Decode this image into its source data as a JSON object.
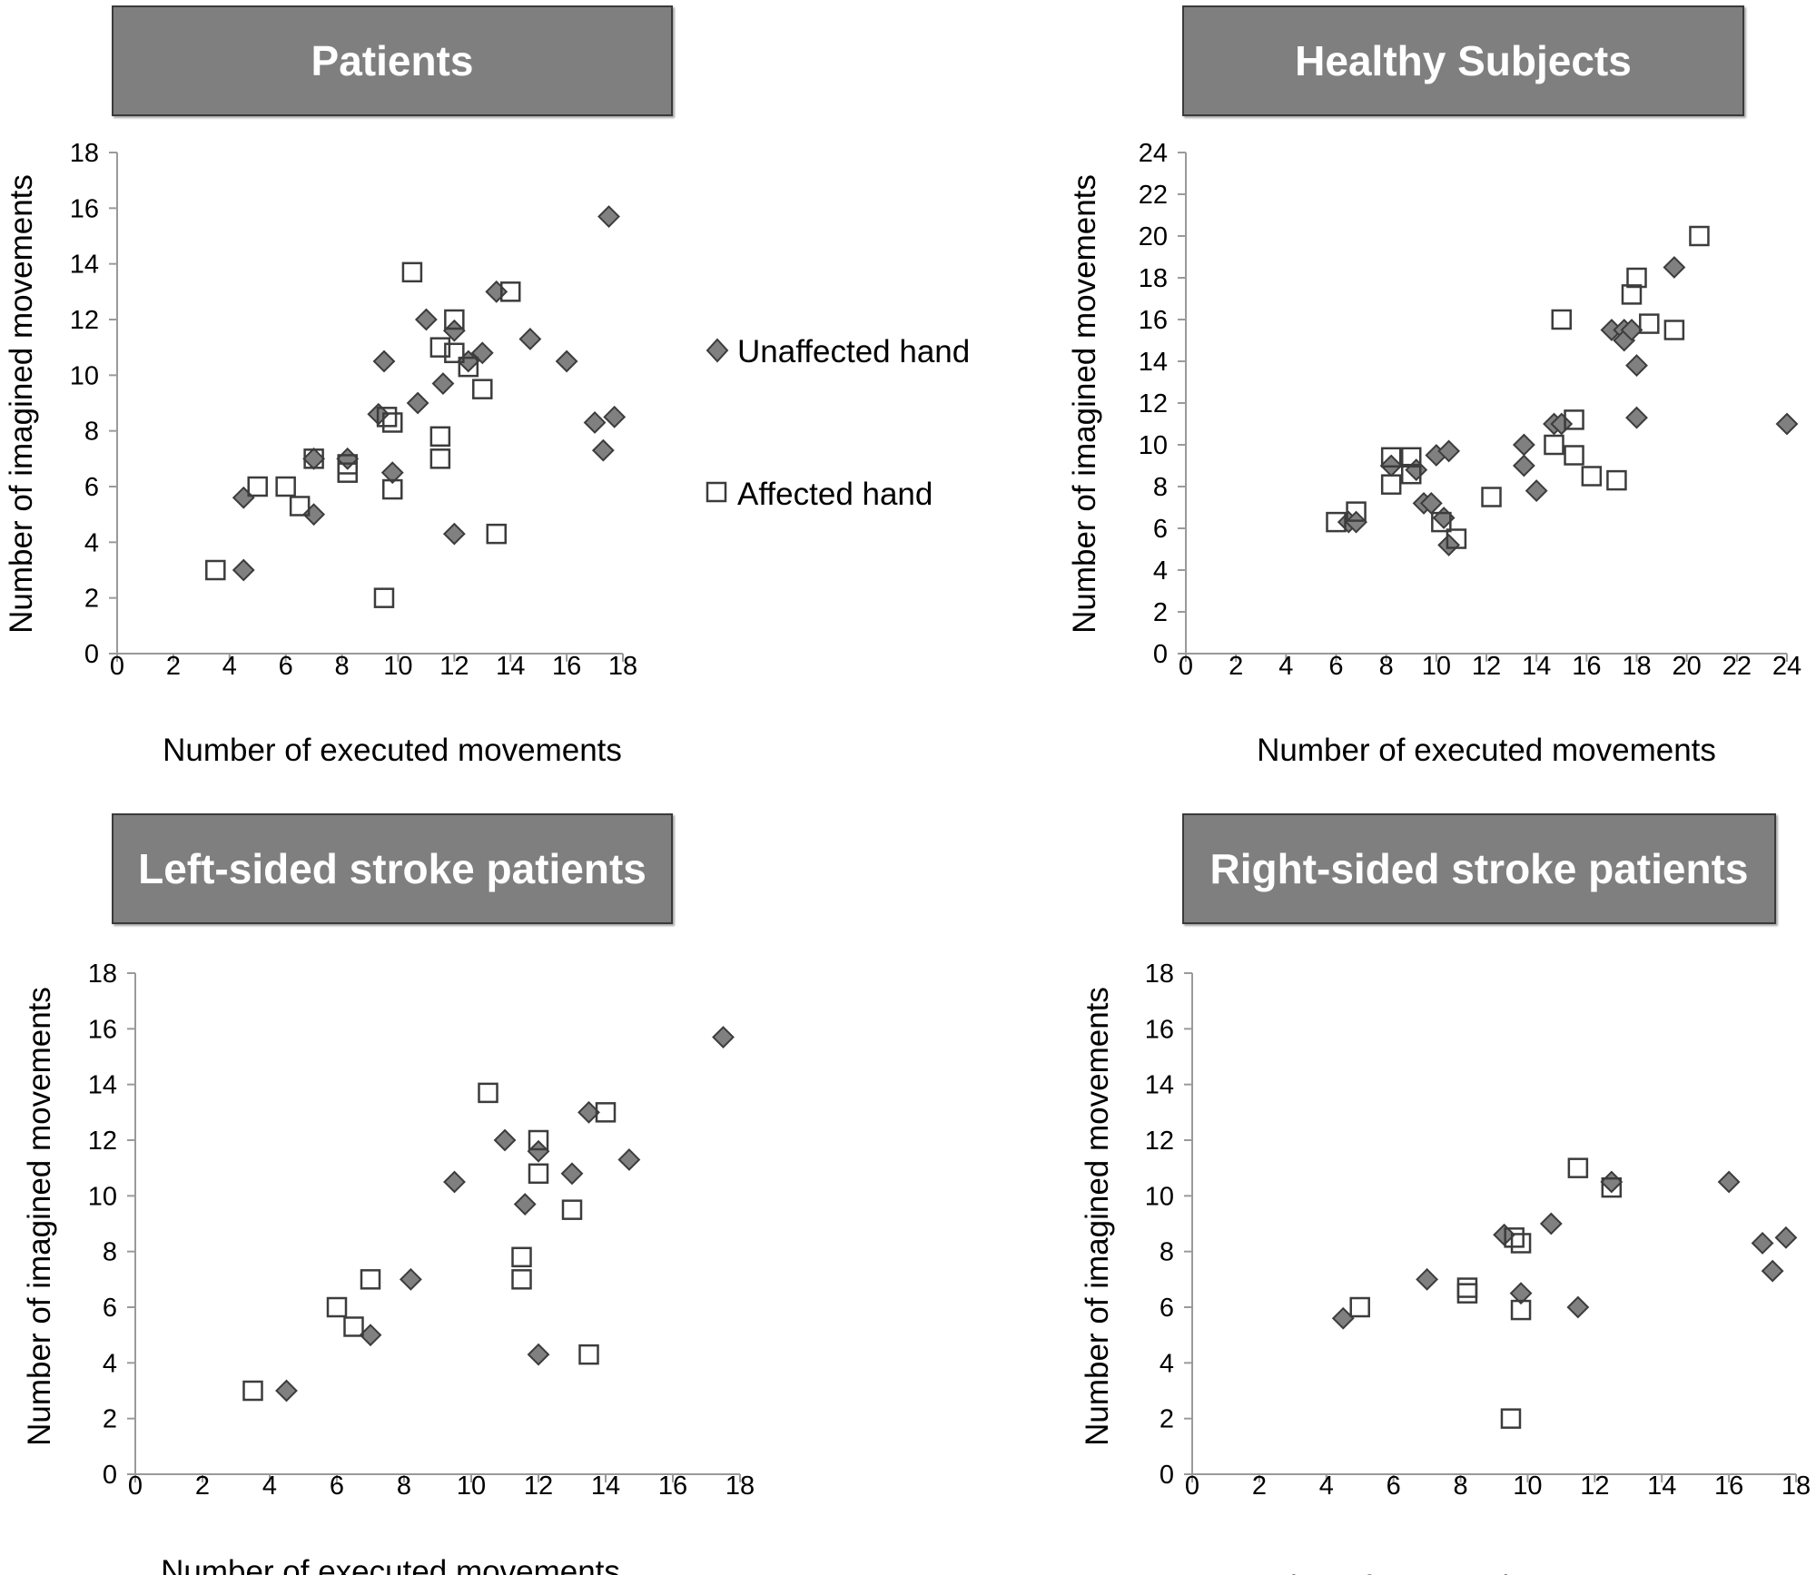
{
  "chart_data": [
    {
      "type": "scatter",
      "title": "Patients",
      "xlabel": "Number of executed movements",
      "ylabel": "Number of imagined movements",
      "xlim": [
        0,
        18
      ],
      "ylim": [
        0,
        18
      ],
      "xticks": [
        "0",
        "2",
        "4",
        "6",
        "8",
        "10",
        "12",
        "14",
        "16",
        "18"
      ],
      "yticks": [
        "0",
        "2",
        "4",
        "6",
        "8",
        "10",
        "12",
        "14",
        "16",
        "18"
      ],
      "legend": {
        "position": "right"
      },
      "series": [
        {
          "name": "Unaffected hand",
          "marker": "diamond",
          "points": [
            [
              4.5,
              5.6
            ],
            [
              4.5,
              3
            ],
            [
              7,
              7
            ],
            [
              7,
              5
            ],
            [
              8.2,
              7
            ],
            [
              9.3,
              8.6
            ],
            [
              9.5,
              10.5
            ],
            [
              9.8,
              6.5
            ],
            [
              10.7,
              9
            ],
            [
              11,
              12
            ],
            [
              11.6,
              9.7
            ],
            [
              12,
              11.6
            ],
            [
              12,
              4.3
            ],
            [
              12.5,
              10.5
            ],
            [
              13,
              10.8
            ],
            [
              13.5,
              13
            ],
            [
              14.7,
              11.3
            ],
            [
              16,
              10.5
            ],
            [
              17,
              8.3
            ],
            [
              17.3,
              7.3
            ],
            [
              17.5,
              15.7
            ],
            [
              17.7,
              8.5
            ]
          ]
        },
        {
          "name": "Affected hand",
          "marker": "square",
          "points": [
            [
              3.5,
              3
            ],
            [
              5,
              6
            ],
            [
              6,
              6
            ],
            [
              6.5,
              5.3
            ],
            [
              7,
              7
            ],
            [
              8.2,
              6.5
            ],
            [
              8.2,
              6.8
            ],
            [
              9.5,
              2
            ],
            [
              9.6,
              8.5
            ],
            [
              9.8,
              8.3
            ],
            [
              9.8,
              5.9
            ],
            [
              10.5,
              13.7
            ],
            [
              11.5,
              11
            ],
            [
              11.5,
              7.8
            ],
            [
              11.5,
              7
            ],
            [
              12,
              12
            ],
            [
              12,
              10.8
            ],
            [
              12.5,
              10.3
            ],
            [
              13,
              9.5
            ],
            [
              13.5,
              4.3
            ],
            [
              14,
              13
            ]
          ]
        }
      ]
    },
    {
      "type": "scatter",
      "title": "Healthy Subjects",
      "xlabel": "Number of executed movements",
      "ylabel": "Number of imagined movements",
      "xlim": [
        0,
        24
      ],
      "ylim": [
        0,
        24
      ],
      "xticks": [
        "0",
        "2",
        "4",
        "6",
        "8",
        "10",
        "12",
        "14",
        "16",
        "18",
        "20",
        "22",
        "24"
      ],
      "yticks": [
        "0",
        "2",
        "4",
        "6",
        "8",
        "10",
        "12",
        "14",
        "16",
        "18",
        "20",
        "22",
        "24"
      ],
      "series": [
        {
          "name": "Unaffected hand",
          "marker": "diamond",
          "points": [
            [
              6.5,
              6.3
            ],
            [
              6.8,
              6.3
            ],
            [
              8.2,
              9
            ],
            [
              9.2,
              8.8
            ],
            [
              9.5,
              7.2
            ],
            [
              9.8,
              7.2
            ],
            [
              10,
              9.5
            ],
            [
              10.3,
              6.5
            ],
            [
              10.5,
              5.2
            ],
            [
              10.5,
              9.7
            ],
            [
              13.5,
              9
            ],
            [
              13.5,
              10
            ],
            [
              14,
              7.8
            ],
            [
              14.7,
              11
            ],
            [
              15,
              11
            ],
            [
              17,
              15.5
            ],
            [
              17.5,
              15.5
            ],
            [
              17.5,
              15
            ],
            [
              17.8,
              15.5
            ],
            [
              18,
              13.8
            ],
            [
              18,
              11.3
            ],
            [
              19.5,
              18.5
            ],
            [
              24,
              11
            ]
          ]
        },
        {
          "name": "Affected hand",
          "marker": "square",
          "points": [
            [
              6,
              6.3
            ],
            [
              6.8,
              6.8
            ],
            [
              8.2,
              9.4
            ],
            [
              8.2,
              8.1
            ],
            [
              9,
              9.4
            ],
            [
              9,
              8.6
            ],
            [
              10.2,
              6.3
            ],
            [
              10.8,
              5.5
            ],
            [
              12.2,
              7.5
            ],
            [
              14.7,
              10
            ],
            [
              15,
              16
            ],
            [
              15.5,
              11.2
            ],
            [
              15.5,
              9.5
            ],
            [
              16.2,
              8.5
            ],
            [
              17.2,
              8.3
            ],
            [
              17.8,
              17.2
            ],
            [
              18,
              18
            ],
            [
              18.5,
              15.8
            ],
            [
              19.5,
              15.5
            ],
            [
              20.5,
              20
            ]
          ]
        }
      ]
    },
    {
      "type": "scatter",
      "title": "Left-sided stroke patients",
      "xlabel": "Number of executed movements",
      "ylabel": "Number of imagined movements",
      "xlim": [
        0,
        18
      ],
      "ylim": [
        0,
        18
      ],
      "xticks": [
        "0",
        "2",
        "4",
        "6",
        "8",
        "10",
        "12",
        "14",
        "16",
        "18"
      ],
      "yticks": [
        "0",
        "2",
        "4",
        "6",
        "8",
        "10",
        "12",
        "14",
        "16",
        "18"
      ],
      "series": [
        {
          "name": "Unaffected hand",
          "marker": "diamond",
          "points": [
            [
              4.5,
              3
            ],
            [
              7,
              5
            ],
            [
              8.2,
              7
            ],
            [
              9.5,
              10.5
            ],
            [
              11,
              12
            ],
            [
              11.6,
              9.7
            ],
            [
              12,
              11.6
            ],
            [
              12,
              4.3
            ],
            [
              13,
              10.8
            ],
            [
              13.5,
              13
            ],
            [
              14.7,
              11.3
            ],
            [
              17.5,
              15.7
            ]
          ]
        },
        {
          "name": "Affected hand",
          "marker": "square",
          "points": [
            [
              3.5,
              3
            ],
            [
              6,
              6
            ],
            [
              6.5,
              5.3
            ],
            [
              7,
              7
            ],
            [
              10.5,
              13.7
            ],
            [
              11.5,
              7.8
            ],
            [
              11.5,
              7
            ],
            [
              12,
              12
            ],
            [
              12,
              10.8
            ],
            [
              13,
              9.5
            ],
            [
              13.5,
              4.3
            ],
            [
              14,
              13
            ]
          ]
        }
      ]
    },
    {
      "type": "scatter",
      "title": "Right-sided stroke patients",
      "xlabel": "Number of executed movements",
      "ylabel": "Number of imagined movements",
      "xlim": [
        0,
        18
      ],
      "ylim": [
        0,
        18
      ],
      "xticks": [
        "0",
        "2",
        "4",
        "6",
        "8",
        "10",
        "12",
        "14",
        "16",
        "18"
      ],
      "yticks": [
        "0",
        "2",
        "4",
        "6",
        "8",
        "10",
        "12",
        "14",
        "16",
        "18"
      ],
      "series": [
        {
          "name": "Unaffected hand",
          "marker": "diamond",
          "points": [
            [
              4.5,
              5.6
            ],
            [
              7,
              7
            ],
            [
              9.3,
              8.6
            ],
            [
              9.8,
              6.5
            ],
            [
              10.7,
              9
            ],
            [
              11.5,
              6
            ],
            [
              12.5,
              10.5
            ],
            [
              16,
              10.5
            ],
            [
              17,
              8.3
            ],
            [
              17.3,
              7.3
            ],
            [
              17.7,
              8.5
            ]
          ]
        },
        {
          "name": "Affected hand",
          "marker": "square",
          "points": [
            [
              5,
              6
            ],
            [
              8.2,
              6.5
            ],
            [
              8.2,
              6.7
            ],
            [
              9.5,
              2
            ],
            [
              9.6,
              8.5
            ],
            [
              9.8,
              8.3
            ],
            [
              9.8,
              5.9
            ],
            [
              11.5,
              11
            ],
            [
              12.5,
              10.3
            ]
          ]
        }
      ]
    }
  ],
  "legend": {
    "unaffected_label": "Unaffected hand",
    "affected_label": "Affected hand"
  },
  "colors": {
    "diamond_fill": "#808080",
    "marker_stroke": "#3c3c3c",
    "axis": "#9a9a9a",
    "title_bg": "#7f7f7f"
  }
}
